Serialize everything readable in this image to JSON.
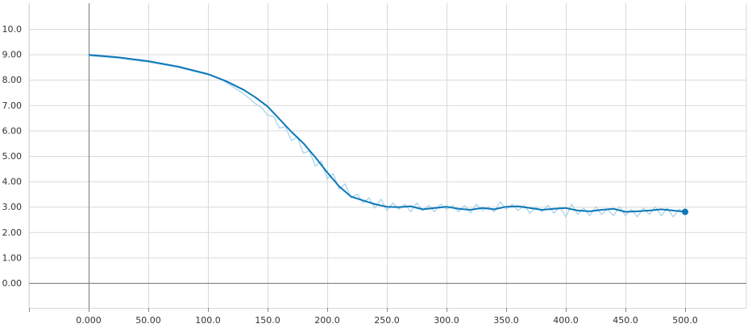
{
  "chart_data": {
    "type": "line",
    "title": "",
    "xlabel": "",
    "ylabel": "",
    "xlim": [
      -50,
      500
    ],
    "ylim": [
      -1,
      11
    ],
    "grid": true,
    "legend": "none",
    "x_ticks": [
      0,
      50,
      100,
      150,
      200,
      250,
      300,
      350,
      400,
      450,
      500
    ],
    "x_tick_labels": [
      "0.000",
      "50.00",
      "100.0",
      "150.0",
      "200.0",
      "250.0",
      "300.0",
      "350.0",
      "400.0",
      "450.0",
      "500.0"
    ],
    "y_ticks": [
      0,
      1,
      2,
      3,
      4,
      5,
      6,
      7,
      8,
      9,
      10
    ],
    "y_tick_labels": [
      "0.00",
      "1.00",
      "2.00",
      "3.00",
      "4.00",
      "5.00",
      "6.00",
      "7.00",
      "8.00",
      "9.00",
      "10.0"
    ],
    "colors": {
      "smoothed": "#0b78b8",
      "raw": "#a9d3ea",
      "grid": "#d9d9d9",
      "axis": "#888888"
    },
    "series": [
      {
        "style": "smoothed",
        "x": [
          0,
          25,
          50,
          75,
          100,
          115,
          130,
          140,
          150,
          160,
          170,
          180,
          190,
          200,
          210,
          220,
          230,
          240,
          250,
          260,
          270,
          280,
          290,
          300,
          310,
          320,
          330,
          340,
          350,
          360,
          370,
          380,
          390,
          400,
          410,
          420,
          430,
          440,
          450,
          460,
          470,
          480,
          490,
          500
        ],
        "y": [
          8.98,
          8.88,
          8.73,
          8.52,
          8.22,
          7.95,
          7.6,
          7.3,
          6.95,
          6.45,
          5.95,
          5.5,
          4.95,
          4.35,
          3.8,
          3.4,
          3.25,
          3.1,
          3.0,
          2.98,
          3.02,
          2.9,
          2.95,
          3.0,
          2.92,
          2.88,
          2.95,
          2.9,
          3.0,
          3.02,
          2.95,
          2.88,
          2.92,
          2.95,
          2.85,
          2.82,
          2.88,
          2.92,
          2.8,
          2.82,
          2.85,
          2.9,
          2.85,
          2.8
        ]
      },
      {
        "style": "raw",
        "x": [
          0,
          25,
          50,
          75,
          100,
          110,
          120,
          130,
          140,
          145,
          150,
          155,
          160,
          165,
          170,
          175,
          180,
          185,
          190,
          195,
          200,
          205,
          210,
          215,
          220,
          225,
          230,
          235,
          240,
          245,
          250,
          255,
          260,
          265,
          270,
          275,
          280,
          285,
          290,
          295,
          300,
          305,
          310,
          315,
          320,
          325,
          330,
          335,
          340,
          345,
          350,
          355,
          360,
          365,
          370,
          375,
          380,
          385,
          390,
          395,
          400,
          405,
          410,
          415,
          420,
          425,
          430,
          435,
          440,
          445,
          450,
          455,
          460,
          465,
          470,
          475,
          480,
          485,
          490,
          495,
          500
        ],
        "y": [
          8.95,
          8.85,
          8.7,
          8.48,
          8.2,
          8.05,
          7.75,
          7.45,
          7.05,
          6.9,
          6.6,
          6.55,
          6.1,
          6.15,
          5.6,
          5.75,
          5.1,
          5.2,
          4.6,
          4.8,
          4.1,
          4.3,
          3.7,
          3.9,
          3.35,
          3.5,
          3.15,
          3.35,
          2.95,
          3.3,
          2.85,
          3.15,
          2.9,
          3.1,
          2.8,
          3.15,
          2.85,
          3.05,
          2.8,
          3.1,
          2.9,
          3.05,
          2.8,
          3.05,
          2.75,
          3.1,
          2.85,
          3.0,
          2.8,
          3.2,
          2.9,
          3.1,
          2.85,
          3.05,
          2.75,
          3.0,
          2.8,
          3.05,
          2.75,
          3.0,
          2.6,
          3.1,
          2.7,
          2.95,
          2.65,
          3.0,
          2.7,
          2.9,
          2.65,
          3.0,
          2.65,
          2.9,
          2.6,
          2.95,
          2.7,
          3.0,
          2.65,
          2.95,
          2.6,
          2.9,
          2.75
        ]
      }
    ],
    "end_marker": {
      "x": 500,
      "y": 2.8
    }
  }
}
